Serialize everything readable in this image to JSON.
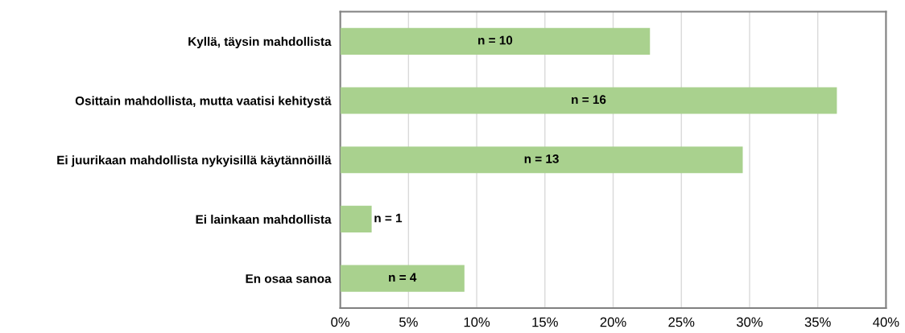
{
  "chart_data": {
    "type": "bar",
    "orientation": "horizontal",
    "categories": [
      "Kyllä, täysin mahdollista",
      "Osittain mahdollista, mutta vaatisi kehitystä",
      "Ei juurikaan mahdollista nykyisillä käytännöillä",
      "Ei lainkaan mahdollista",
      "En osaa sanoa"
    ],
    "values": [
      22.7,
      36.4,
      29.5,
      2.3,
      9.1
    ],
    "annotations": [
      "n = 10",
      "n = 16",
      "n = 13",
      "n = 1",
      "n = 4"
    ],
    "color": "#a9d18e",
    "xlim": [
      0,
      40
    ],
    "xticks": [
      {
        "value": 0,
        "label": "0%"
      },
      {
        "value": 5,
        "label": "5%"
      },
      {
        "value": 10,
        "label": "10%"
      },
      {
        "value": 15,
        "label": "15%"
      },
      {
        "value": 20,
        "label": "20%"
      },
      {
        "value": 25,
        "label": "25%"
      },
      {
        "value": 30,
        "label": "30%"
      },
      {
        "value": 35,
        "label": "35%"
      },
      {
        "value": 40,
        "label": "40%"
      }
    ],
    "grid": "x"
  }
}
